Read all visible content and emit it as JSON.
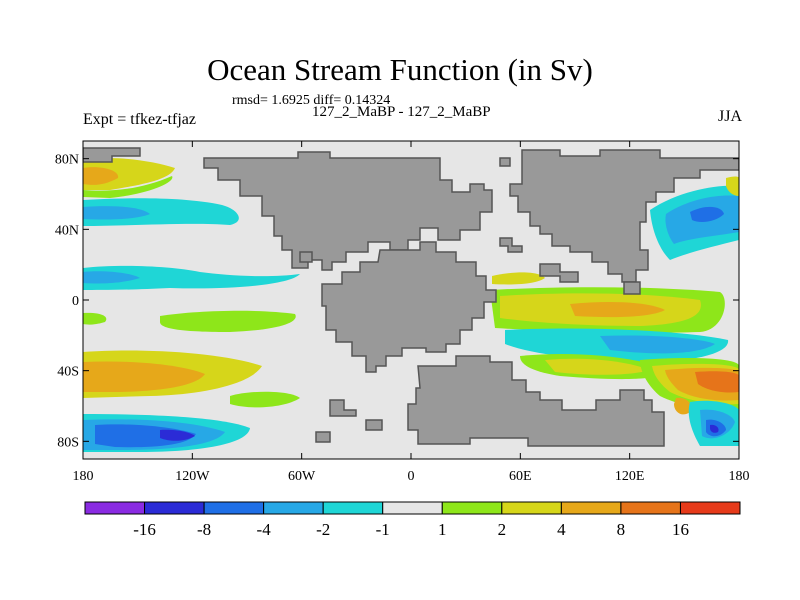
{
  "title": "Ocean Stream Function (in Sv)",
  "stats": "rmsd= 1.6925 diff= 0.14324",
  "subtitle": "127_2_MaBP - 127_2_MaBP",
  "left_label": "Expt = tfkez-tfjaz",
  "right_label": "JJA",
  "axes": {
    "x_ticks": [
      {
        "value": -180,
        "label": "180"
      },
      {
        "value": -120,
        "label": "120W"
      },
      {
        "value": -60,
        "label": "60W"
      },
      {
        "value": 0,
        "label": "0"
      },
      {
        "value": 60,
        "label": "60E"
      },
      {
        "value": 120,
        "label": "120E"
      },
      {
        "value": 180,
        "label": "180"
      }
    ],
    "y_ticks": [
      {
        "value": 80,
        "label": "80N"
      },
      {
        "value": 40,
        "label": "40N"
      },
      {
        "value": 0,
        "label": "0"
      },
      {
        "value": -40,
        "label": "40S"
      },
      {
        "value": -80,
        "label": "80S"
      }
    ],
    "lon_range": [
      -180,
      180
    ],
    "lat_range": [
      -90,
      90
    ]
  },
  "colorbar": {
    "colors": [
      "#8a2be2",
      "#2b2bd6",
      "#1f6fe6",
      "#27a8e6",
      "#1fd6d6",
      "#e6e6e6",
      "#8ee61a",
      "#d6d61a",
      "#e6a81a",
      "#e6741a",
      "#e63a1a"
    ],
    "labels": [
      "-16",
      "-8",
      "-4",
      "-2",
      "-1",
      "1",
      "2",
      "4",
      "8",
      "16"
    ]
  },
  "colors": {
    "land": "#999999",
    "ocean_background": "#e6e6e6"
  }
}
